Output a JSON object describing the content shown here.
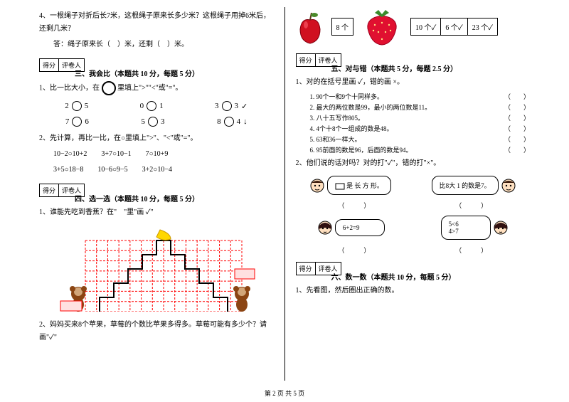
{
  "left": {
    "q4": {
      "text": "4、一根绳子对折后长7米，这根绳子原来长多少米？这根绳子用掉6米后，还剩几米？",
      "answer_line": "答：绳子原来长（　）米，还剩（　）米。"
    },
    "score": {
      "label1": "得分",
      "label2": "评卷人"
    },
    "section3": {
      "title": "三、我会比（本题共 10 分，每题 5 分）",
      "q1_text": "1、比一比大小，在",
      "q1_text2": "里填上\">\"\"<\"或\"=\"。",
      "row1": [
        {
          "a": "2",
          "b": "5"
        },
        {
          "a": "0",
          "b": "1"
        },
        {
          "a": "3",
          "b": "3",
          "tail": "✓"
        }
      ],
      "row2": [
        {
          "a": "7",
          "b": "6"
        },
        {
          "a": "5",
          "b": "3"
        },
        {
          "a": "8",
          "b": "4",
          "tail": "↓"
        }
      ],
      "q2_text": "2、先计算，再比一比，在○里填上\">\"、\"<\"或\"=\"。",
      "q2_line1": "10−2○10+2　　3+7○10−1　　7○10+9",
      "q2_line2": "3+5○18−8　　10−6○9−5　　3+2○10−4"
    },
    "section4": {
      "title": "四、选一选（本题共 10 分，每题 5 分）",
      "q1_text": "1、谁能先吃到香蕉？在\"　\"里\"画 ✓\"",
      "q2_text": "2、妈妈买来8个苹果，草莓的个数比苹果多得多。草莓可能有多少个？请画\"✓\""
    }
  },
  "right": {
    "fruit": {
      "apple_count": "8 个",
      "opts": [
        "10 个✓",
        "6 个✓",
        "23 个✓"
      ]
    },
    "score": {
      "label1": "得分",
      "label2": "评卷人"
    },
    "section5": {
      "title": "五、对与错（本题共 5 分，每题 2.5 分）",
      "q1_text": "1、对的在括号里画 ✓，错的画 ×。",
      "items": [
        "1. 90个一和9个十同样多。",
        "2. 最大的两位数是99，最小的两位数是11。",
        "3. 八十五写作805。",
        "4. 4个十8个一组成的数是48。",
        "5. 63和36一样大。",
        "6. 95前面的数是96，后面的数是94。"
      ],
      "q2_text": "2、他们说的话对吗？对的打\"✓\"，错的打\"×\"。",
      "speech1": "是 长 方 形。",
      "speech2": "比8大 1 的数是7。",
      "speech3": "6+2=9",
      "speech4a": "5<6",
      "speech4b": "4>7"
    },
    "section6": {
      "title": "六、数一数（本题共 10 分，每题 5 分）",
      "q1_text": "1、先看图，然后圈出正确的数。"
    }
  },
  "footer": "第 2 页 共 5 页",
  "chart": {
    "rows": 7,
    "cols": 14,
    "grid_color": "#ff0000",
    "staircase_color": "#000000",
    "monkey_color": "#8b4513",
    "banana_color": "#ffd700"
  }
}
